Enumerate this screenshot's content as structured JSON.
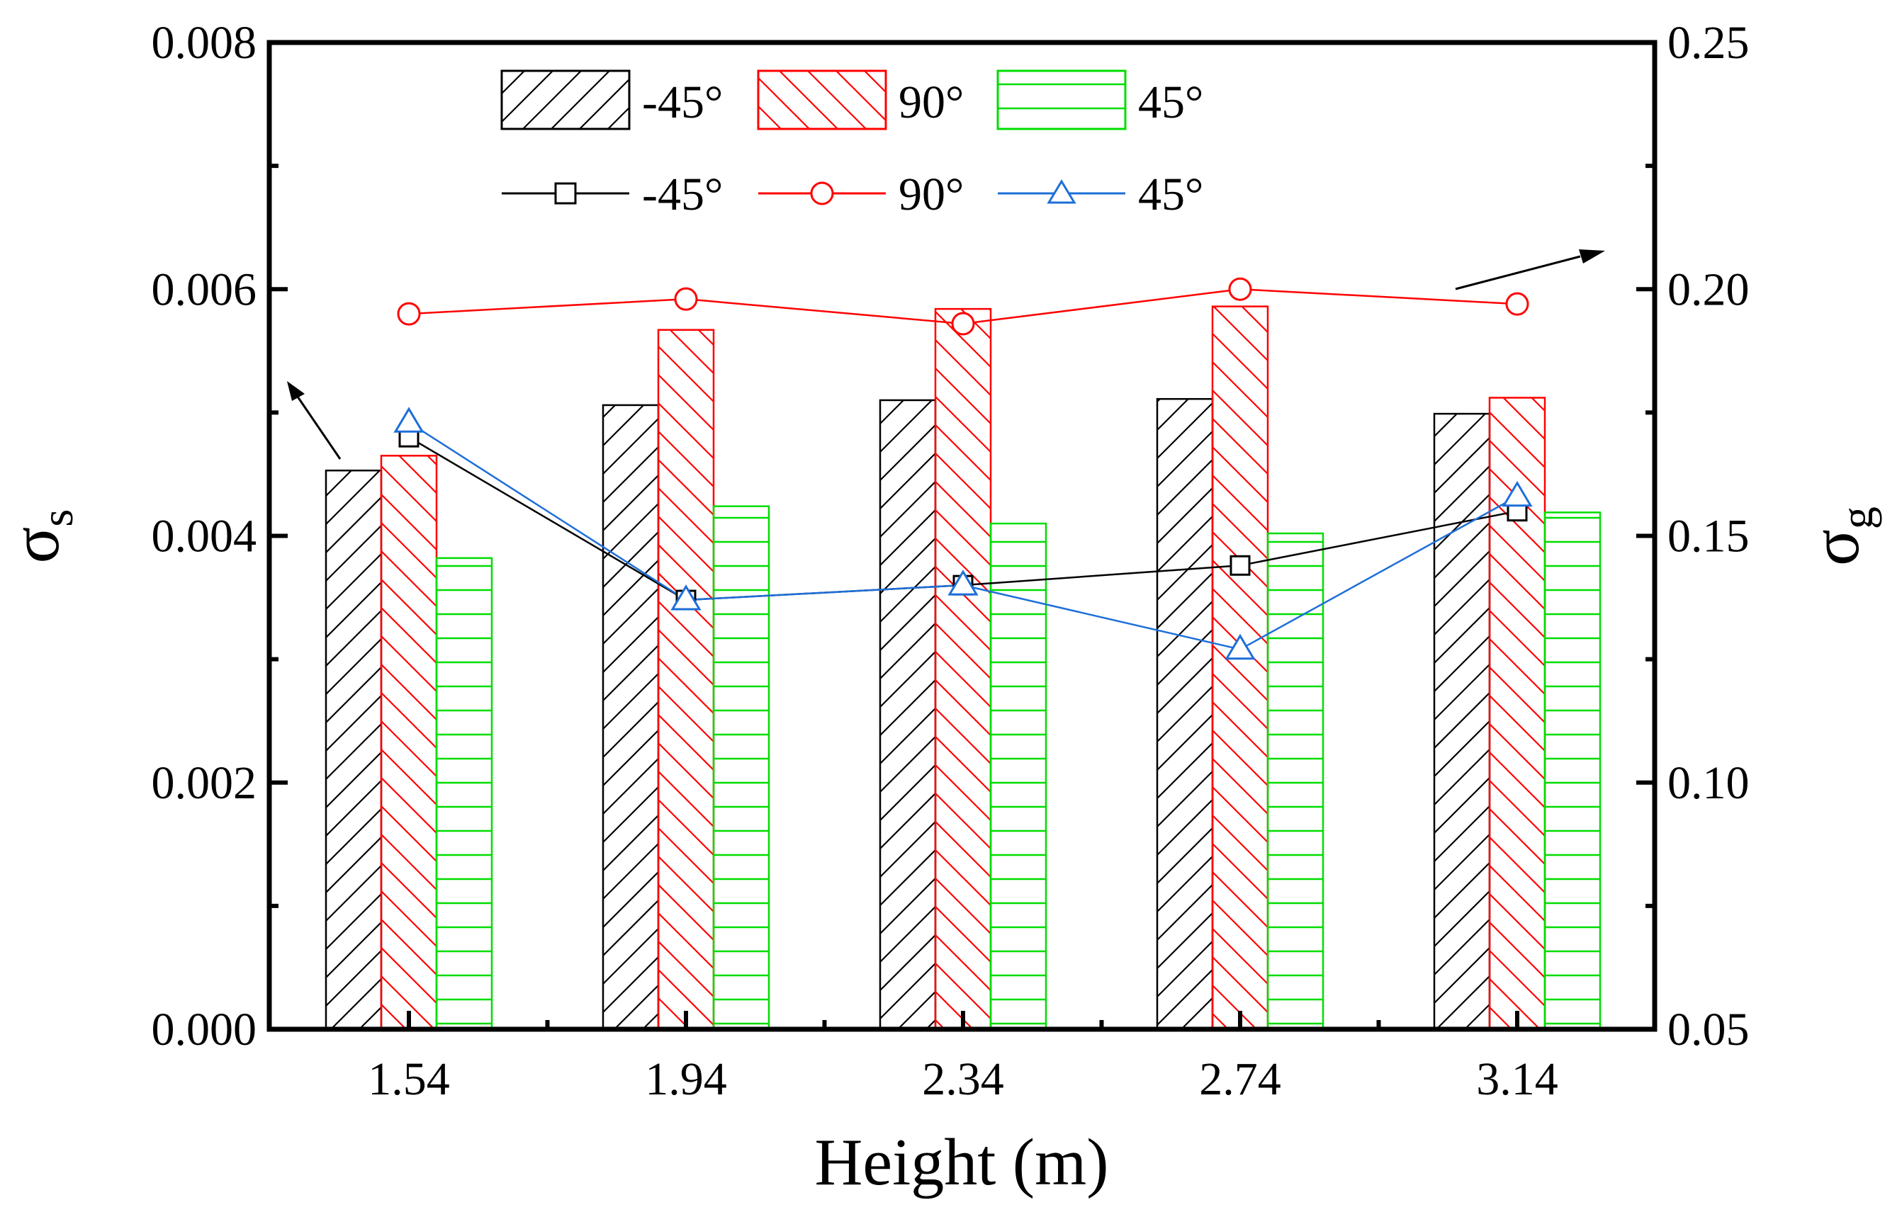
{
  "chart_data": {
    "type": "bar",
    "categories": [
      "1.54",
      "1.94",
      "2.34",
      "2.74",
      "3.14"
    ],
    "xlabel": "Height (m)",
    "ylabel_left": {
      "symbol": "σ",
      "sub": "s"
    },
    "ylabel_right": {
      "symbol": "σ",
      "sub": "g"
    },
    "ylim_left": [
      0,
      0.008
    ],
    "ylim_right": [
      0.05,
      0.25
    ],
    "yticks_left": [
      "0.000",
      "0.002",
      "0.004",
      "0.006",
      "0.008"
    ],
    "yticks_right": [
      "0.05",
      "0.10",
      "0.15",
      "0.20",
      "0.25"
    ],
    "bar_series": [
      {
        "name": "-45°",
        "axis": "left",
        "color": "#000000",
        "pattern": "hatch-forward",
        "values": [
          0.00453,
          0.00506,
          0.0051,
          0.00511,
          0.00499
        ]
      },
      {
        "name": "90°",
        "axis": "left",
        "color": "#ff0000",
        "pattern": "hatch-back",
        "values": [
          0.00465,
          0.00567,
          0.00584,
          0.00586,
          0.00512
        ]
      },
      {
        "name": "45°",
        "axis": "left",
        "color": "#00dd00",
        "pattern": "horizontal",
        "values": [
          0.00382,
          0.00424,
          0.0041,
          0.00402,
          0.00419
        ]
      }
    ],
    "line_series": [
      {
        "name": "-45°",
        "axis": "right",
        "color": "#000000",
        "marker": "square",
        "values": [
          0.17,
          0.137,
          0.14,
          0.144,
          0.155
        ]
      },
      {
        "name": "90°",
        "axis": "right",
        "color": "#ff0000",
        "marker": "circle",
        "values": [
          0.195,
          0.198,
          0.193,
          0.2,
          0.197
        ]
      },
      {
        "name": "45°",
        "axis": "right",
        "color": "#1e6fd9",
        "marker": "triangle",
        "values": [
          0.173,
          0.137,
          0.14,
          0.127,
          0.158
        ]
      }
    ],
    "annotations": [
      {
        "type": "arrow",
        "points_to": "left-axis",
        "near_series": "-45°"
      },
      {
        "type": "arrow",
        "points_to": "right-axis",
        "near_series": "90°"
      }
    ]
  }
}
